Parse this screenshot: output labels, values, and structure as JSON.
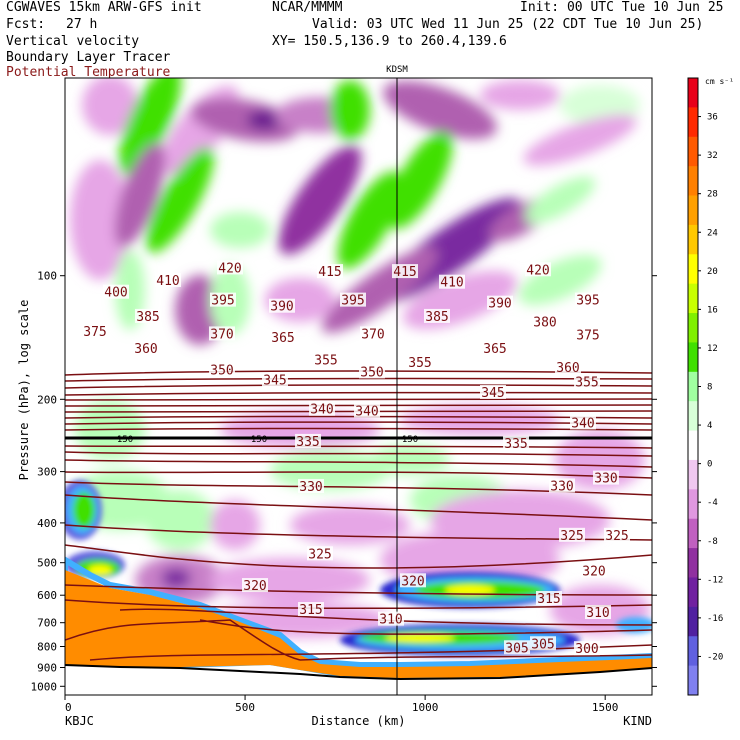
{
  "header": {
    "model_line": "CGWAVES 15km ARW-GFS init",
    "org": "NCAR/MMMM",
    "init": "Init: 00 UTC Tue 10 Jun 25",
    "fcst_label": "Fcst:",
    "fcst_value": "27 h",
    "valid": "Valid: 03 UTC Wed 11 Jun 25 (22 CDT Tue 10 Jun 25)",
    "field1": "Vertical velocity",
    "field2": "Boundary Layer Tracer",
    "field3": "Potential Temperature",
    "xy": "XY= 150.5,136.9 to 260.4,139.6"
  },
  "colors": {
    "theta_contour": "#7a0f12",
    "orange_fill": "#ff8c00",
    "axis": "#000000"
  },
  "chart_data": {
    "type": "heatmap",
    "title": "",
    "xlabel": "Distance (km)",
    "ylabel": "Pressure (hPa), log scale",
    "x_ticks": [
      0,
      500,
      1000,
      1500
    ],
    "y_ticks": [
      100,
      200,
      300,
      400,
      500,
      600,
      700,
      800,
      900,
      1000
    ],
    "xlim": [
      0,
      1630
    ],
    "log_scale_y": true,
    "station_left": "KBJC",
    "station_right": "KIND",
    "station_mid": "KDSM",
    "station_mid_x": 940,
    "colorbar": {
      "units": "cm s⁻¹",
      "ticks": [
        36,
        32,
        28,
        24,
        20,
        16,
        12,
        8,
        4,
        0,
        -4,
        -8,
        -12,
        -16,
        -20
      ],
      "colors": [
        "#e8001a",
        "#ff2a00",
        "#ff5a00",
        "#ff8000",
        "#ffa000",
        "#ffc800",
        "#ffff00",
        "#c8ff00",
        "#80f000",
        "#40e000",
        "#a0ffa0",
        "#d8ffd8",
        "#ffffff",
        "#f0c8f0",
        "#e098e0",
        "#c060c0",
        "#9030a0",
        "#7020a0",
        "#5020a0",
        "#6060e0",
        "#8080f0"
      ]
    },
    "theta_labels": [
      {
        "v": "420",
        "x": 230,
        "p": 96
      },
      {
        "v": "415",
        "x": 330,
        "p": 98
      },
      {
        "v": "415",
        "x": 405,
        "p": 98
      },
      {
        "v": "420",
        "x": 538,
        "p": 97
      },
      {
        "v": "410",
        "x": 168,
        "p": 103
      },
      {
        "v": "410",
        "x": 452,
        "p": 104
      },
      {
        "v": "400",
        "x": 116,
        "p": 110
      },
      {
        "v": "395",
        "x": 223,
        "p": 115
      },
      {
        "v": "390",
        "x": 282,
        "p": 119
      },
      {
        "v": "395",
        "x": 353,
        "p": 115
      },
      {
        "v": "390",
        "x": 500,
        "p": 117
      },
      {
        "v": "395",
        "x": 588,
        "p": 115
      },
      {
        "v": "385",
        "x": 148,
        "p": 126
      },
      {
        "v": "385",
        "x": 437,
        "p": 126
      },
      {
        "v": "380",
        "x": 545,
        "p": 130
      },
      {
        "v": "375",
        "x": 95,
        "p": 137
      },
      {
        "v": "370",
        "x": 222,
        "p": 139
      },
      {
        "v": "365",
        "x": 283,
        "p": 142
      },
      {
        "v": "370",
        "x": 373,
        "p": 139
      },
      {
        "v": "375",
        "x": 588,
        "p": 140
      },
      {
        "v": "360",
        "x": 146,
        "p": 151
      },
      {
        "v": "355",
        "x": 326,
        "p": 161
      },
      {
        "v": "355",
        "x": 420,
        "p": 163
      },
      {
        "v": "365",
        "x": 495,
        "p": 151
      },
      {
        "v": "350",
        "x": 222,
        "p": 170
      },
      {
        "v": "350",
        "x": 372,
        "p": 172
      },
      {
        "v": "360",
        "x": 568,
        "p": 168
      },
      {
        "v": "345",
        "x": 275,
        "p": 180
      },
      {
        "v": "355",
        "x": 587,
        "p": 182
      },
      {
        "v": "345",
        "x": 493,
        "p": 193
      },
      {
        "v": "340",
        "x": 322,
        "p": 212
      },
      {
        "v": "340",
        "x": 367,
        "p": 214
      },
      {
        "v": "340",
        "x": 583,
        "p": 229
      },
      {
        "v": "335",
        "x": 308,
        "p": 254
      },
      {
        "v": "335",
        "x": 516,
        "p": 257
      },
      {
        "v": "330",
        "x": 311,
        "p": 327
      },
      {
        "v": "330",
        "x": 562,
        "p": 326
      },
      {
        "v": "330",
        "x": 606,
        "p": 312
      },
      {
        "v": "325",
        "x": 320,
        "p": 477
      },
      {
        "v": "325",
        "x": 572,
        "p": 430
      },
      {
        "v": "325",
        "x": 617,
        "p": 430
      },
      {
        "v": "320",
        "x": 255,
        "p": 570
      },
      {
        "v": "320",
        "x": 413,
        "p": 555
      },
      {
        "v": "320",
        "x": 594,
        "p": 525
      },
      {
        "v": "315",
        "x": 311,
        "p": 652
      },
      {
        "v": "315",
        "x": 549,
        "p": 613
      },
      {
        "v": "310",
        "x": 391,
        "p": 688
      },
      {
        "v": "310",
        "x": 598,
        "p": 663
      },
      {
        "v": "305",
        "x": 517,
        "p": 808
      },
      {
        "v": "305",
        "x": 543,
        "p": 790
      },
      {
        "v": "300",
        "x": 587,
        "p": 812
      }
    ],
    "isobar_150_labels": [
      {
        "v": "150",
        "x": 125
      },
      {
        "v": "150",
        "x": 259
      },
      {
        "v": "150",
        "x": 410
      }
    ]
  }
}
